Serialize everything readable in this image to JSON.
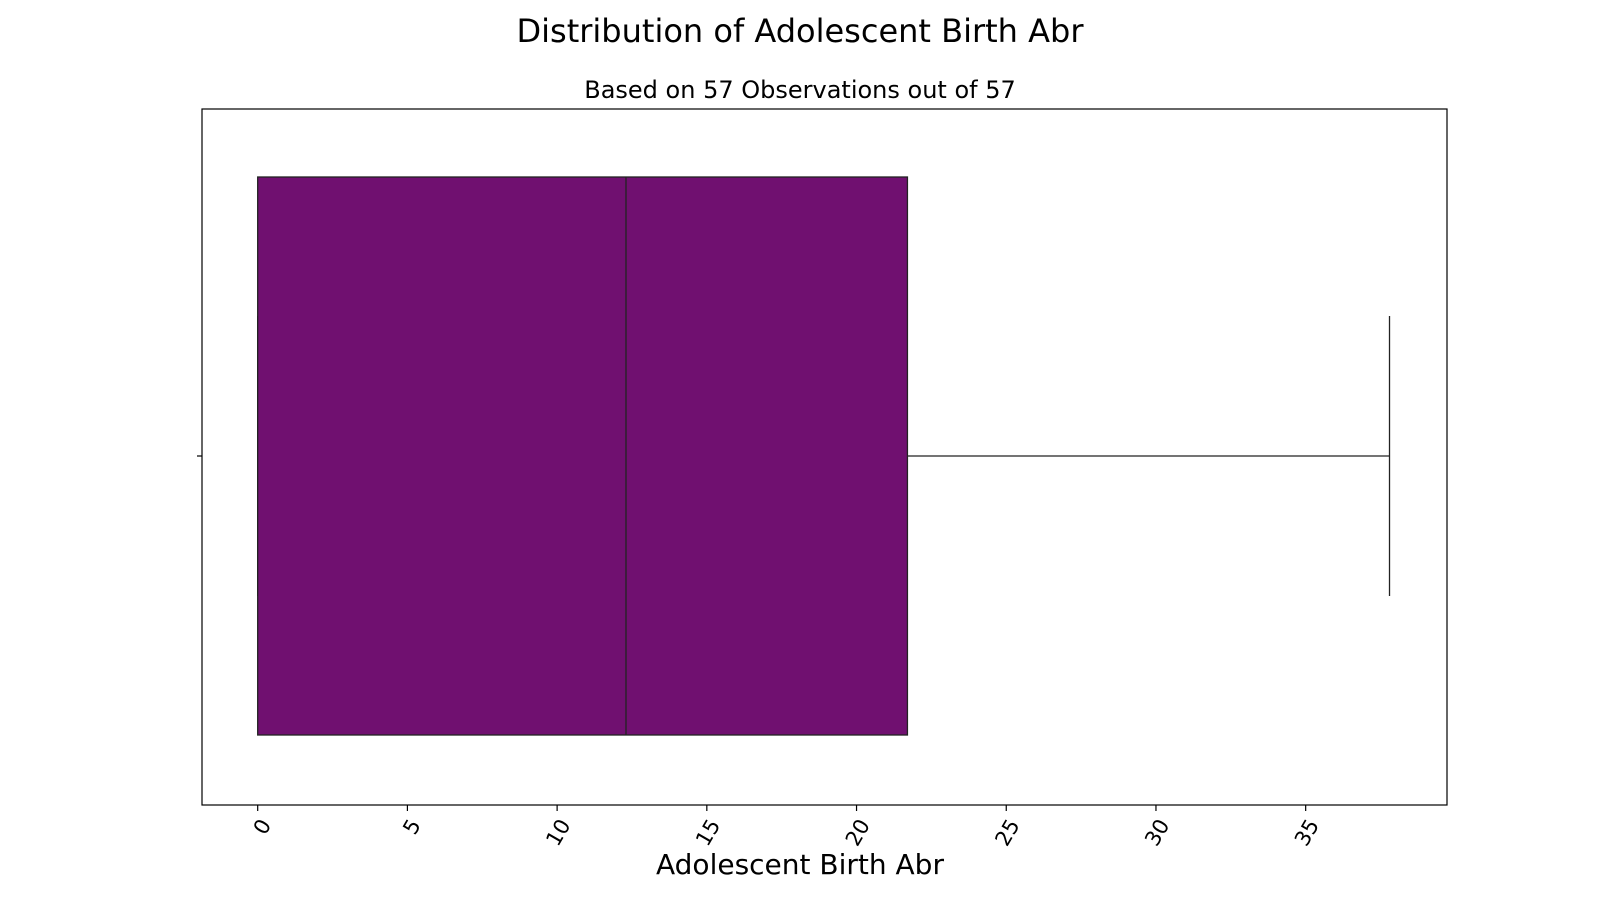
{
  "chart_data": {
    "type": "box",
    "orientation": "horizontal",
    "title": "Distribution of Adolescent Birth Abr",
    "subtitle": "Based on 57 Observations out of 57",
    "xlabel": "Adolescent Birth Abr",
    "xlim": [
      -1.86,
      39.72
    ],
    "xticks": [
      0,
      5,
      10,
      15,
      20,
      25,
      30,
      35
    ],
    "tick_rotation_deg": -60,
    "grid": false,
    "box": {
      "whisker_low": 0,
      "q1": 0,
      "median": 12.3,
      "q3": 21.7,
      "whisker_high": 37.8,
      "color": "#701070"
    }
  }
}
